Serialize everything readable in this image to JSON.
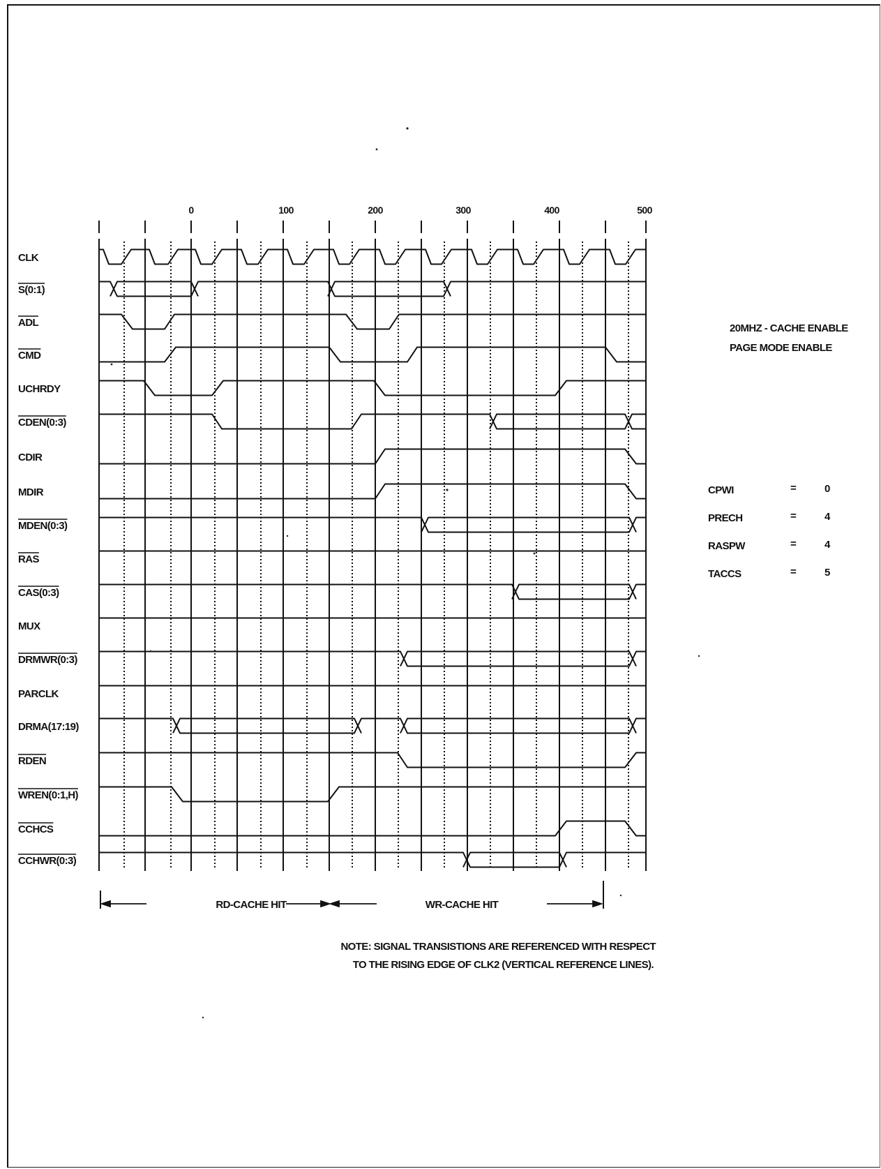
{
  "diagram": {
    "type": "timing-diagram",
    "time_ticks": [
      "0",
      "100",
      "200",
      "300",
      "400",
      "500"
    ],
    "signals": [
      {
        "label": "CLK",
        "overline": false
      },
      {
        "label": "S(0:1)",
        "overline": true
      },
      {
        "label": "ADL",
        "overline": true
      },
      {
        "label": "CMD",
        "overline": true
      },
      {
        "label": "UCHRDY",
        "overline": false
      },
      {
        "label": "CDEN(0:3)",
        "overline": true
      },
      {
        "label": "CDIR",
        "overline": false
      },
      {
        "label": "MDIR",
        "overline": false
      },
      {
        "label": "MDEN(0:3)",
        "overline": true
      },
      {
        "label": "RAS",
        "overline": true
      },
      {
        "label": "CAS(0:3)",
        "overline": true
      },
      {
        "label": "MUX",
        "overline": false
      },
      {
        "label": "DRMWR(0:3)",
        "overline": true
      },
      {
        "label": "PARCLK",
        "overline": false
      },
      {
        "label": "DRMA(17:19)",
        "overline": false
      },
      {
        "label": "RDEN",
        "overline": true
      },
      {
        "label": "WREN(0:1,H)",
        "overline": true
      },
      {
        "label": "CCHCS",
        "overline": true
      },
      {
        "label": "CCHWR(0:3)",
        "overline": true
      }
    ],
    "mode_lines": [
      "20MHZ - CACHE ENABLE",
      "PAGE MODE ENABLE"
    ],
    "params": [
      {
        "name": "CPWI",
        "eq": "=",
        "value": "0"
      },
      {
        "name": "PRECH",
        "eq": "=",
        "value": "4"
      },
      {
        "name": "RASPW",
        "eq": "=",
        "value": "4"
      },
      {
        "name": "TACCS",
        "eq": "=",
        "value": "5"
      }
    ],
    "phases": [
      "RD-CACHE HIT",
      "WR-CACHE HIT"
    ],
    "note_lines": [
      "NOTE:  SIGNAL TRANSISTIONS ARE REFERENCED WITH RESPECT",
      "TO THE RISING EDGE OF CLK2 (VERTICAL REFERENCE LINES)."
    ]
  }
}
